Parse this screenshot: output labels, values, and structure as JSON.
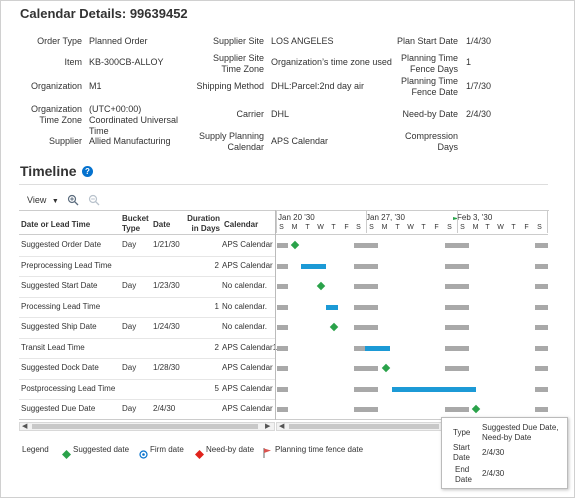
{
  "page": {
    "title": "Calendar Details: 99639452"
  },
  "details": {
    "col1": [
      {
        "label": "Order Type",
        "value": "Planned Order"
      },
      {
        "label": "Item",
        "value": "KB-300CB-ALLOY"
      },
      {
        "label": "Organization",
        "value": "M1"
      },
      {
        "label": "Organization Time Zone",
        "value": "(UTC+00:00) Coordinated Universal Time"
      },
      {
        "label": "Supplier",
        "value": "Allied Manufacturing"
      }
    ],
    "col2": [
      {
        "label": "Supplier Site",
        "value": "LOS ANGELES"
      },
      {
        "label": "Supplier Site Time Zone",
        "value": "Organization’s time zone used"
      },
      {
        "label": "Shipping Method",
        "value": "DHL:Parcel:2nd day air"
      },
      {
        "label": "Carrier",
        "value": "DHL"
      },
      {
        "label": "Supply Planning Calendar",
        "value": "APS Calendar"
      }
    ],
    "col3": [
      {
        "label": "Plan Start Date",
        "value": "1/4/30"
      },
      {
        "label": "Planning Time Fence Days",
        "value": "1"
      },
      {
        "label": "Planning Time Fence Date",
        "value": "1/7/30"
      },
      {
        "label": "Need-by Date",
        "value": "2/4/30"
      },
      {
        "label": "Compression Days",
        "value": ""
      }
    ]
  },
  "timeline": {
    "title": "Timeline",
    "help_icon": "question-circle-icon",
    "toolbar": {
      "view_label": "View",
      "zoom_in_icon": "zoom-in-icon",
      "zoom_out_icon": "zoom-out-icon"
    },
    "columns": {
      "name": "Date or Lead Time",
      "bucket": "Bucket Type",
      "date": "Date",
      "duration": "Duration in Days",
      "calendar": "Calendar"
    },
    "rows": [
      {
        "name": "Suggested Order Date",
        "bucket": "Day",
        "date": "1/21/30",
        "duration": "",
        "calendar": "APS Calendar"
      },
      {
        "name": "Preprocessing Lead Time",
        "bucket": "",
        "date": "",
        "duration": "2",
        "calendar": "APS Calendar"
      },
      {
        "name": "Suggested Start Date",
        "bucket": "Day",
        "date": "1/23/30",
        "duration": "",
        "calendar": "No calendar."
      },
      {
        "name": "Processing Lead Time",
        "bucket": "",
        "date": "",
        "duration": "1",
        "calendar": "No calendar."
      },
      {
        "name": "Suggested Ship Date",
        "bucket": "Day",
        "date": "1/24/30",
        "duration": "",
        "calendar": "No calendar."
      },
      {
        "name": "Transit Lead Time",
        "bucket": "",
        "date": "",
        "duration": "2",
        "calendar": "APS Calendar1"
      },
      {
        "name": "Suggested Dock Date",
        "bucket": "Day",
        "date": "1/28/30",
        "duration": "",
        "calendar": "APS Calendar"
      },
      {
        "name": "Postprocessing Lead Time",
        "bucket": "",
        "date": "",
        "duration": "5",
        "calendar": "APS Calendar"
      },
      {
        "name": "Suggested Due Date",
        "bucket": "Day",
        "date": "2/4/30",
        "duration": "",
        "calendar": "APS Calendar"
      }
    ],
    "weeks": [
      "Jan 20 '30",
      "Jan 27, '30",
      "Feb 3, '30"
    ],
    "day_letters": [
      "S",
      "M",
      "T",
      "W",
      "T",
      "F",
      "S",
      "S",
      "M",
      "T",
      "W",
      "T",
      "F",
      "S",
      "S",
      "M",
      "T",
      "W",
      "T",
      "F",
      "S",
      "S"
    ],
    "colors": {
      "suggested": "#2aa24a",
      "firm": "#0572ce",
      "need_by": "#e0231c",
      "fence": "#d9534f",
      "lead_bar": "#1c9ad6",
      "nonwork": "#a9a9a9"
    }
  },
  "legend": {
    "title": "Legend",
    "items": [
      {
        "label": "Suggested date",
        "icon": "green-diamond-icon"
      },
      {
        "label": "Firm date",
        "icon": "firm-date-icon"
      },
      {
        "label": "Need-by date",
        "icon": "red-diamond-icon"
      },
      {
        "label": "Planning time fence date",
        "icon": "flag-icon"
      }
    ]
  },
  "tooltip": {
    "type_label": "Type",
    "type_value": "Suggested Due Date, Need-by Date",
    "start_label": "Start Date",
    "start_value": "2/4/30",
    "end_label": "End Date",
    "end_value": "2/4/30"
  }
}
